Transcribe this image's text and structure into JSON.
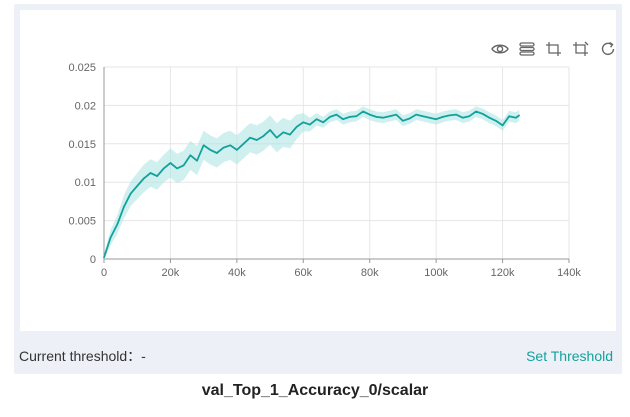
{
  "toolbar": {
    "icons": [
      "eye-icon",
      "layers-icon",
      "crop-icon",
      "crop-alt-icon",
      "refresh-icon"
    ]
  },
  "threshold": {
    "label": "Current threshold：-",
    "action_label": "Set Threshold"
  },
  "chart_title": "val_Top_1_Accuracy_0/scalar",
  "colors": {
    "line": "#13a19c",
    "band": "#a8e4e2",
    "accent": "#13a19c",
    "grid": "#e6e6e6",
    "panel": "#eef0f7"
  },
  "chart_data": {
    "type": "line",
    "title": "val_Top_1_Accuracy_0/scalar",
    "xlabel": "",
    "ylabel": "",
    "xlim": [
      0,
      140000
    ],
    "ylim": [
      0,
      0.025
    ],
    "x_ticks": [
      0,
      20000,
      40000,
      60000,
      80000,
      100000,
      120000,
      140000
    ],
    "x_tick_labels": [
      "0",
      "20k",
      "40k",
      "60k",
      "80k",
      "100k",
      "120k",
      "140k"
    ],
    "y_ticks": [
      0,
      0.005,
      0.01,
      0.015,
      0.02,
      0.025
    ],
    "y_tick_labels": [
      "0",
      "0.005",
      "0.01",
      "0.015",
      "0.02",
      "0.025"
    ],
    "grid": true,
    "series": [
      {
        "x": [
          0,
          2000,
          4000,
          6000,
          8000,
          10000,
          12000,
          14000,
          16000,
          18000,
          20000,
          22000,
          24000,
          26000,
          28000,
          30000,
          32000,
          34000,
          36000,
          38000,
          40000,
          42000,
          44000,
          46000,
          48000,
          50000,
          52000,
          54000,
          56000,
          58000,
          60000,
          62000,
          64000,
          66000,
          68000,
          70000,
          72000,
          74000,
          76000,
          78000,
          80000,
          82000,
          84000,
          86000,
          88000,
          90000,
          92000,
          94000,
          96000,
          98000,
          100000,
          102000,
          104000,
          106000,
          108000,
          110000,
          112000,
          114000,
          116000,
          118000,
          120000,
          122000,
          124000,
          125000
        ],
        "y": [
          0.0002,
          0.0028,
          0.0045,
          0.0068,
          0.0085,
          0.0095,
          0.0105,
          0.0112,
          0.0108,
          0.0118,
          0.0125,
          0.0118,
          0.0122,
          0.0135,
          0.0128,
          0.0148,
          0.0142,
          0.0138,
          0.0145,
          0.0148,
          0.0142,
          0.015,
          0.0158,
          0.0155,
          0.016,
          0.0168,
          0.0158,
          0.0165,
          0.0162,
          0.0172,
          0.0178,
          0.0175,
          0.0182,
          0.0178,
          0.0185,
          0.0188,
          0.0182,
          0.0185,
          0.0186,
          0.0192,
          0.0188,
          0.0185,
          0.0184,
          0.0186,
          0.0188,
          0.018,
          0.0183,
          0.0188,
          0.0186,
          0.0184,
          0.0182,
          0.0185,
          0.0187,
          0.0188,
          0.0184,
          0.0186,
          0.0192,
          0.0189,
          0.0184,
          0.018,
          0.0174,
          0.0186,
          0.0184,
          0.0187
        ],
        "spread": [
          0.0004,
          0.001,
          0.0012,
          0.0015,
          0.0016,
          0.0017,
          0.0018,
          0.0018,
          0.0018,
          0.0018,
          0.0019,
          0.0019,
          0.0019,
          0.0019,
          0.0019,
          0.0019,
          0.0019,
          0.0019,
          0.0019,
          0.0019,
          0.0019,
          0.0019,
          0.0019,
          0.0019,
          0.0019,
          0.0019,
          0.0019,
          0.0019,
          0.0018,
          0.0016,
          0.0012,
          0.0009,
          0.0008,
          0.0007,
          0.0007,
          0.0007,
          0.0007,
          0.0007,
          0.0007,
          0.0007,
          0.0007,
          0.0007,
          0.0007,
          0.0007,
          0.0007,
          0.0007,
          0.0007,
          0.0007,
          0.0007,
          0.0007,
          0.0007,
          0.0007,
          0.0007,
          0.0007,
          0.0007,
          0.0007,
          0.0007,
          0.0007,
          0.0007,
          0.0007,
          0.0007,
          0.0007,
          0.0007,
          0.0007
        ]
      }
    ]
  }
}
